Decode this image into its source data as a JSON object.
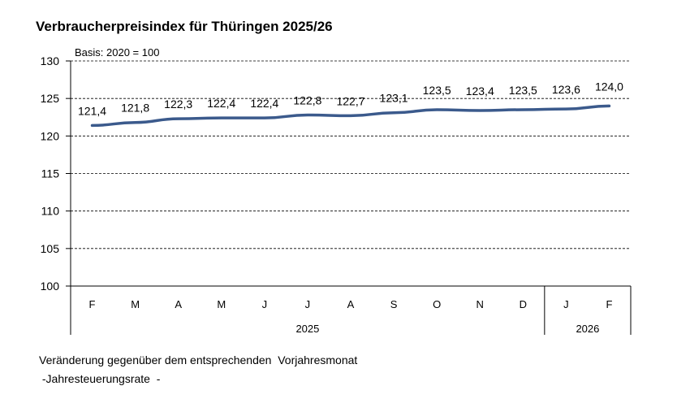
{
  "chart_data": {
    "type": "line",
    "title": "Verbraucherpreisindex für Thüringen 2025/26",
    "subtitle": "Basis: 2020 = 100",
    "categories": [
      "F",
      "M",
      "A",
      "M",
      "J",
      "J",
      "A",
      "S",
      "O",
      "N",
      "D",
      "J",
      "F"
    ],
    "year_groups": [
      {
        "label": "2025",
        "count": 11
      },
      {
        "label": "2026",
        "count": 2
      }
    ],
    "values": [
      121.4,
      121.8,
      122.3,
      122.4,
      122.4,
      122.8,
      122.7,
      123.1,
      123.5,
      123.4,
      123.5,
      123.6,
      124.0
    ],
    "data_labels": [
      "121,4",
      "121,8",
      "122,3",
      "122,4",
      "122,4",
      "122,8",
      "122,7",
      "123,1",
      "123,5",
      "123,4",
      "123,5",
      "123,6",
      "124,0"
    ],
    "ylim": [
      100,
      130
    ],
    "yticks": [
      100,
      105,
      110,
      115,
      120,
      125,
      130
    ],
    "grid": true,
    "line_color": "#3b5a8c"
  },
  "footer": {
    "line1": "Veränderung gegenüber dem entsprechenden  Vorjahresmonat",
    "line2": " -Jahresteuerungsrate  -"
  }
}
